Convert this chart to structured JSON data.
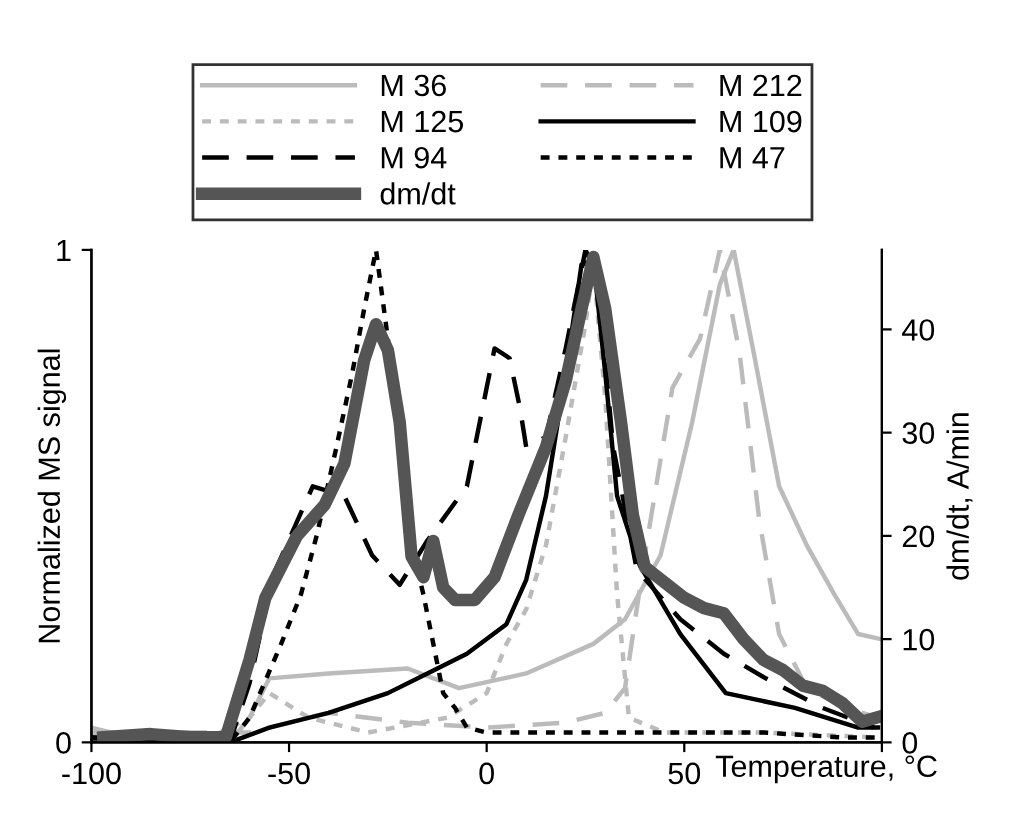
{
  "chart_data": {
    "type": "line",
    "xlabel": "Temperature, °C",
    "ylabel": "Normalized MS signal",
    "y2label": "dm/dt, A/min",
    "xlim": [
      -100,
      100
    ],
    "xticks": [
      -100,
      -50,
      0,
      50,
      {
        "value": 100,
        "label": null
      }
    ],
    "ylim": [
      0,
      1
    ],
    "yticks": [
      0,
      1
    ],
    "y2lim": [
      0,
      47.7
    ],
    "y2ticks": [
      0,
      10,
      20,
      30,
      40
    ],
    "grid": false,
    "legend": "top",
    "marker": "none",
    "series": [
      {
        "name": "M 36",
        "color": "#bbbbbb",
        "line_style": "solid",
        "x": [
          -100,
          -85,
          -65,
          -60,
          -55,
          -40,
          -20,
          -7,
          10,
          27,
          35,
          44,
          52,
          59,
          62.5,
          67.6,
          74,
          81,
          88,
          94,
          99.5
        ],
        "values": [
          0.03,
          0.0,
          0.0,
          0.05,
          0.13,
          0.14,
          0.15,
          0.11,
          0.14,
          0.2,
          0.25,
          0.38,
          0.65,
          0.93,
          1.0,
          0.79,
          0.52,
          0.4,
          0.3,
          0.22,
          0.21
        ]
      },
      {
        "name": "M 212",
        "color": "#bbbbbb",
        "line_style": "dashed",
        "x": [
          -100,
          -60,
          -40,
          -20,
          0,
          20,
          30,
          35,
          40,
          47,
          54,
          59,
          64,
          69,
          74,
          81,
          91,
          99
        ],
        "values": [
          0.02,
          0.02,
          0.06,
          0.04,
          0.03,
          0.04,
          0.06,
          0.11,
          0.38,
          0.72,
          0.82,
          1.0,
          0.79,
          0.45,
          0.22,
          0.11,
          0.07,
          0.05
        ]
      },
      {
        "name": "M 125",
        "color": "#bbbbbb",
        "line_style": "dotted",
        "x": [
          -100,
          -70,
          -60,
          -55,
          -45,
          -30,
          -10,
          0,
          5,
          10,
          15,
          20,
          25,
          27,
          30,
          33,
          36,
          45,
          70,
          99
        ],
        "values": [
          0.02,
          0.01,
          0.05,
          0.1,
          0.05,
          0.02,
          0.05,
          0.1,
          0.2,
          0.27,
          0.4,
          0.62,
          0.85,
          0.97,
          0.7,
          0.3,
          0.05,
          0.02,
          0.02,
          0.01
        ]
      },
      {
        "name": "M 109",
        "color": "#000000",
        "line_style": "solid",
        "x": [
          -100,
          -65,
          -55,
          -40,
          -25,
          -15,
          -5,
          5,
          10,
          15,
          20,
          24,
          27,
          30,
          33,
          38.7,
          49,
          60.5,
          78,
          94,
          99
        ],
        "values": [
          0.0,
          0.0,
          0.03,
          0.06,
          0.1,
          0.14,
          0.18,
          0.24,
          0.33,
          0.5,
          0.75,
          0.97,
          0.98,
          0.75,
          0.5,
          0.36,
          0.22,
          0.1,
          0.07,
          0.03,
          0.03
        ]
      },
      {
        "name": "M 94",
        "color": "#000000",
        "line_style": "dashed",
        "x": [
          -100,
          -65,
          -60,
          -54,
          -44,
          -36,
          -29,
          -22,
          -15,
          -5,
          2,
          5.8,
          8.4,
          10,
          15,
          20,
          25,
          28,
          32,
          38,
          49,
          60,
          70.6,
          85,
          98
        ],
        "values": [
          0.01,
          0.0,
          0.12,
          0.34,
          0.52,
          0.5,
          0.38,
          0.32,
          0.41,
          0.52,
          0.8,
          0.78,
          0.68,
          0.6,
          0.62,
          0.8,
          1.0,
          0.95,
          0.6,
          0.35,
          0.25,
          0.18,
          0.13,
          0.07,
          0.03
        ]
      },
      {
        "name": "M 47",
        "color": "#000000",
        "line_style": "dotted",
        "x": [
          -100,
          -65,
          -60,
          -52,
          -47,
          -43,
          -38,
          -34,
          -31,
          -28,
          -25,
          -22,
          -19,
          -16,
          -11,
          -8,
          -5,
          0,
          10,
          30,
          50,
          70,
          90,
          99
        ],
        "values": [
          0.01,
          0.0,
          0.05,
          0.2,
          0.3,
          0.42,
          0.6,
          0.75,
          0.88,
          1.0,
          0.82,
          0.6,
          0.4,
          0.3,
          0.1,
          0.07,
          0.03,
          0.02,
          0.02,
          0.02,
          0.02,
          0.02,
          0.01,
          0.01
        ]
      },
      {
        "name": "dm/dt",
        "color": "#555555",
        "line_style": "solid",
        "axis": "y2",
        "x": [
          -97,
          -85,
          -75,
          -66,
          -60,
          -56,
          -48,
          -41,
          -36,
          -31,
          -28,
          -25,
          -22,
          -19,
          -16,
          -13.5,
          -11,
          -8,
          -3,
          2,
          8,
          15,
          20,
          24,
          27,
          30,
          34,
          37,
          40,
          45,
          50,
          55,
          60,
          65,
          70,
          75,
          80,
          85,
          90,
          95,
          99.5
        ],
        "values": [
          0.5,
          0.8,
          0.5,
          0.5,
          8,
          14,
          20,
          23,
          27,
          37,
          40.5,
          38,
          31,
          18,
          16,
          19.5,
          15,
          13.8,
          13.8,
          16,
          22,
          28.6,
          35,
          42,
          47,
          42,
          31,
          22,
          17,
          15.5,
          14,
          13,
          12.5,
          10,
          8,
          7,
          5.5,
          5,
          3.8,
          2,
          2.5
        ]
      }
    ]
  }
}
